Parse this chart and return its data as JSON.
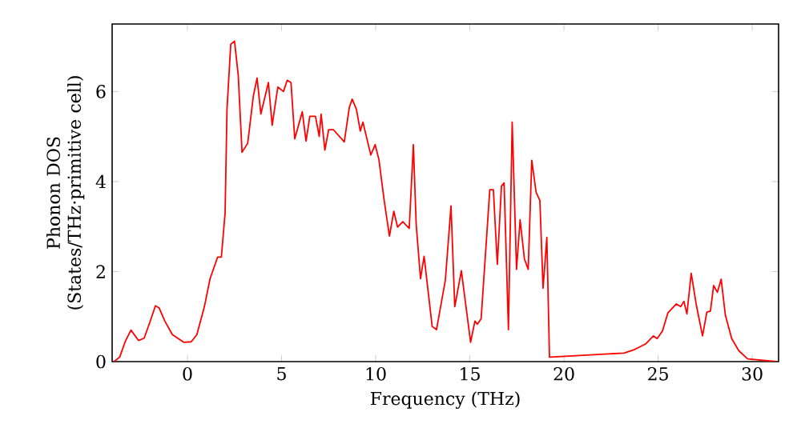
{
  "chart_data": {
    "type": "line",
    "xlabel": "Frequency (THz)",
    "ylabel": "Phonon DOS (States/THz·primitive cell)",
    "xlim": [
      -4,
      31.4
    ],
    "ylim": [
      0,
      7.5
    ],
    "xticks": [
      0,
      5,
      10,
      15,
      20,
      25,
      30
    ],
    "yticks": [
      0,
      2,
      4,
      6
    ],
    "marker": "none",
    "line_style": "solid",
    "series": [
      {
        "color": "#ff0000",
        "x": [
          -3.9,
          -3.6,
          -3.3,
          -3.0,
          -2.6,
          -2.3,
          -2.0,
          -1.7,
          -1.5,
          -1.2,
          -0.8,
          -0.2,
          0.2,
          0.5,
          0.9,
          1.2,
          1.6,
          1.8,
          2.0,
          2.1,
          2.3,
          2.5,
          2.7,
          2.9,
          3.2,
          3.5,
          3.7,
          3.9,
          4.3,
          4.5,
          4.8,
          5.1,
          5.3,
          5.5,
          5.7,
          6.1,
          6.3,
          6.5,
          6.8,
          7.0,
          7.1,
          7.3,
          7.5,
          7.76,
          8.33,
          8.6,
          8.75,
          8.98,
          9.18,
          9.32,
          9.74,
          9.97,
          10.17,
          10.45,
          10.73,
          10.96,
          11.16,
          11.44,
          11.78,
          12.0,
          12.15,
          12.38,
          12.57,
          13.0,
          13.23,
          13.7,
          14.0,
          14.2,
          14.55,
          15.04,
          15.27,
          15.4,
          15.6,
          16.06,
          16.25,
          16.46,
          16.68,
          16.82,
          17.05,
          17.25,
          17.48,
          17.67,
          17.9,
          18.1,
          18.29,
          18.52,
          18.72,
          18.89,
          19.09,
          19.23,
          19.29,
          23.19,
          23.76,
          24.33,
          24.75,
          24.95,
          25.23,
          25.52,
          25.97,
          26.2,
          26.37,
          26.53,
          26.76,
          27.02,
          27.36,
          27.59,
          27.78,
          27.95,
          28.15,
          28.35,
          28.57,
          28.91,
          29.29,
          29.76,
          31.3
        ],
        "values": [
          0,
          0.1,
          0.45,
          0.7,
          0.47,
          0.52,
          0.87,
          1.24,
          1.19,
          0.9,
          0.6,
          0.43,
          0.44,
          0.6,
          1.22,
          1.84,
          2.32,
          2.32,
          3.3,
          5.6,
          7.05,
          7.12,
          6.35,
          4.65,
          4.85,
          5.9,
          6.3,
          5.5,
          6.2,
          5.25,
          6.1,
          6.0,
          6.25,
          6.2,
          4.95,
          5.55,
          4.9,
          5.45,
          5.45,
          5.0,
          5.5,
          4.7,
          5.15,
          5.15,
          4.88,
          5.65,
          5.83,
          5.6,
          5.12,
          5.32,
          4.59,
          4.82,
          4.49,
          3.58,
          2.79,
          3.34,
          2.99,
          3.11,
          2.96,
          4.82,
          3.05,
          1.84,
          2.34,
          0.78,
          0.71,
          1.81,
          3.46,
          1.22,
          2.02,
          0.43,
          0.9,
          0.83,
          0.95,
          3.82,
          3.82,
          2.16,
          3.9,
          3.97,
          0.71,
          5.32,
          2.05,
          3.15,
          2.28,
          2.05,
          4.47,
          3.76,
          3.58,
          1.63,
          2.76,
          0.1,
          0.1,
          0.19,
          0.27,
          0.39,
          0.57,
          0.51,
          0.68,
          1.08,
          1.28,
          1.22,
          1.34,
          1.06,
          1.96,
          1.28,
          0.57,
          1.1,
          1.12,
          1.69,
          1.54,
          1.83,
          1.04,
          0.51,
          0.24,
          0.06,
          0
        ]
      }
    ]
  }
}
